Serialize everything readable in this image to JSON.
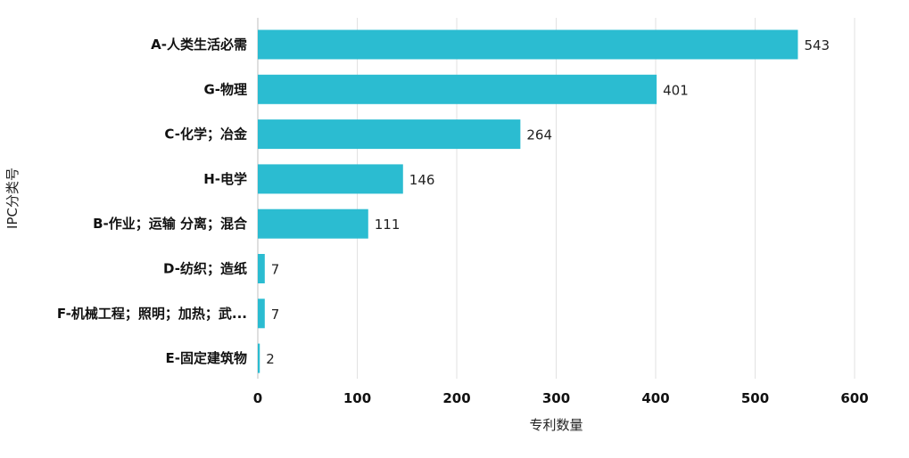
{
  "chart_data": {
    "type": "bar",
    "orientation": "horizontal",
    "categories": [
      "A-人类生活必需",
      "G-物理",
      "C-化学；冶金",
      "H-电学",
      "B-作业；运输 分离；混合",
      "D-纺织；造纸",
      "F-机械工程；照明；加热；武...",
      "E-固定建筑物"
    ],
    "values": [
      543,
      401,
      264,
      146,
      111,
      7,
      7,
      2
    ],
    "xlabel": "专利数量",
    "ylabel": "IPC分类号",
    "xlim": [
      0,
      600
    ],
    "x_ticks": [
      0,
      100,
      200,
      300,
      400,
      500,
      600
    ],
    "grid": "vertical",
    "bar_color": "#2bbcd1",
    "data_labels": true
  }
}
